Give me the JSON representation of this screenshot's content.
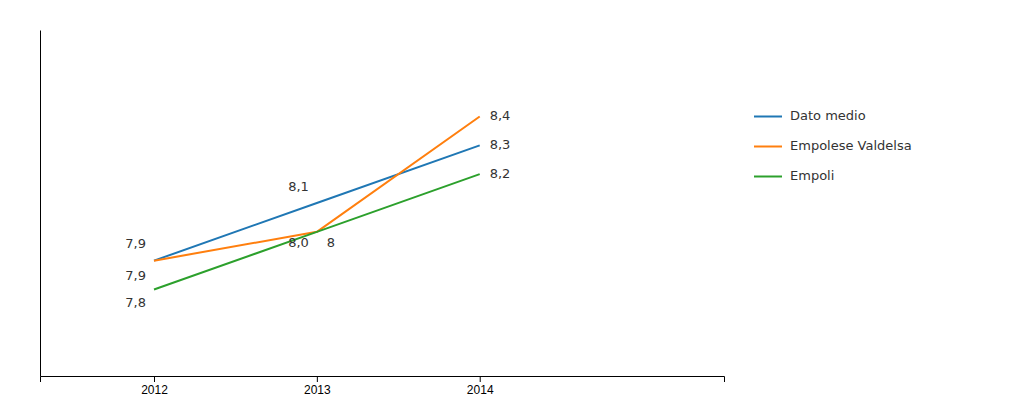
{
  "chart_data": {
    "type": "line",
    "x": [
      2012,
      2013,
      2014
    ],
    "series": [
      {
        "name": "Dato medio",
        "values": [
          7.9,
          8.1,
          8.3
        ],
        "value_labels": [
          "7,9",
          "8,1",
          "8,3"
        ]
      },
      {
        "name": "Empolese Valdelsa",
        "values": [
          7.9,
          8.0,
          8.4
        ],
        "value_labels": [
          "7,9",
          "8,0",
          "8,4"
        ]
      },
      {
        "name": "Empoli",
        "values": [
          7.8,
          8.0,
          8.2
        ],
        "value_labels": [
          "7,8",
          "8",
          "8,2"
        ]
      }
    ],
    "xlim": [
      2011.3,
      2015.5
    ],
    "ylim": [
      7.5,
      8.7
    ],
    "xticks": [
      2012,
      2013,
      2014
    ],
    "data_labels": true,
    "tick_labels": "x",
    "grid": false,
    "legend": "right"
  }
}
